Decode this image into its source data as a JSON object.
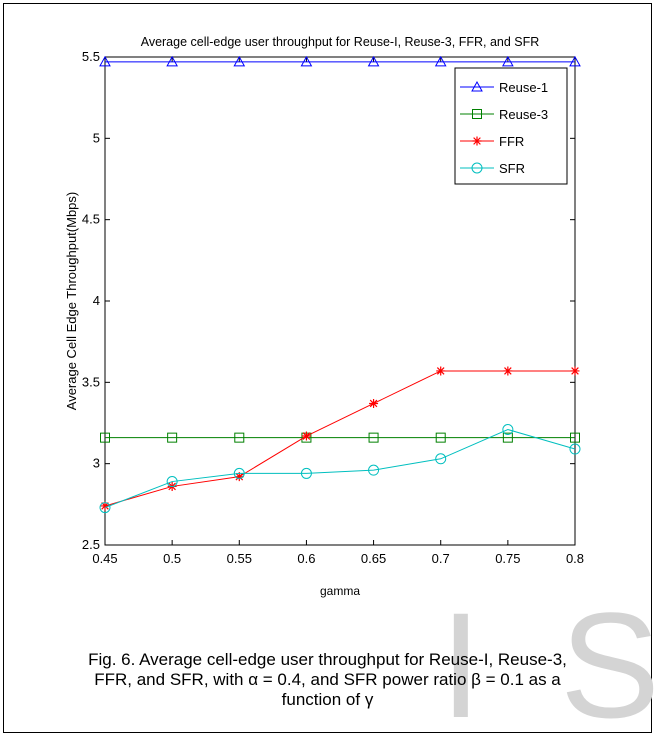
{
  "chart_data": {
    "type": "line",
    "title": "Average cell-edge user throughput for Reuse-I, Reuse-3, FFR, and SFR",
    "xlabel": "gamma",
    "ylabel": "Average Cell Edge Throughput(Mbps)",
    "x": [
      0.45,
      0.5,
      0.55,
      0.6,
      0.65,
      0.7,
      0.75,
      0.8
    ],
    "xlim": [
      0.45,
      0.8
    ],
    "ylim": [
      2.5,
      5.5
    ],
    "xticks": [
      "0.45",
      "0.5",
      "0.55",
      "0.6",
      "0.65",
      "0.7",
      "0.75",
      "0.8"
    ],
    "yticks": [
      "2.5",
      "3",
      "3.5",
      "4",
      "4.5",
      "5",
      "5.5"
    ],
    "grid": false,
    "legend_position": "top-right",
    "series": [
      {
        "name": "Reuse-1",
        "color": "#0000ff",
        "marker": "triangle",
        "values": [
          5.47,
          5.47,
          5.47,
          5.47,
          5.47,
          5.47,
          5.47,
          5.47
        ]
      },
      {
        "name": "Reuse-3",
        "color": "#008000",
        "marker": "square",
        "values": [
          3.16,
          3.16,
          3.16,
          3.16,
          3.16,
          3.16,
          3.16,
          3.16
        ]
      },
      {
        "name": "FFR",
        "color": "#ff0000",
        "marker": "star",
        "values": [
          2.74,
          2.86,
          2.92,
          3.17,
          3.37,
          3.57,
          3.57,
          3.57
        ]
      },
      {
        "name": "SFR",
        "color": "#00bfbf",
        "marker": "circle",
        "values": [
          2.73,
          2.89,
          2.94,
          2.94,
          2.96,
          3.03,
          3.21,
          3.09
        ]
      }
    ]
  },
  "caption": {
    "line1": "Fig. 6. Average cell-edge user throughput for Reuse-I, Reuse-3,",
    "line2": "FFR, and SFR, with α = 0.4, and SFR power ratio β = 0.1 as a",
    "line3": "function of γ"
  },
  "watermark": {
    "text1": "I",
    "text2": "S"
  }
}
